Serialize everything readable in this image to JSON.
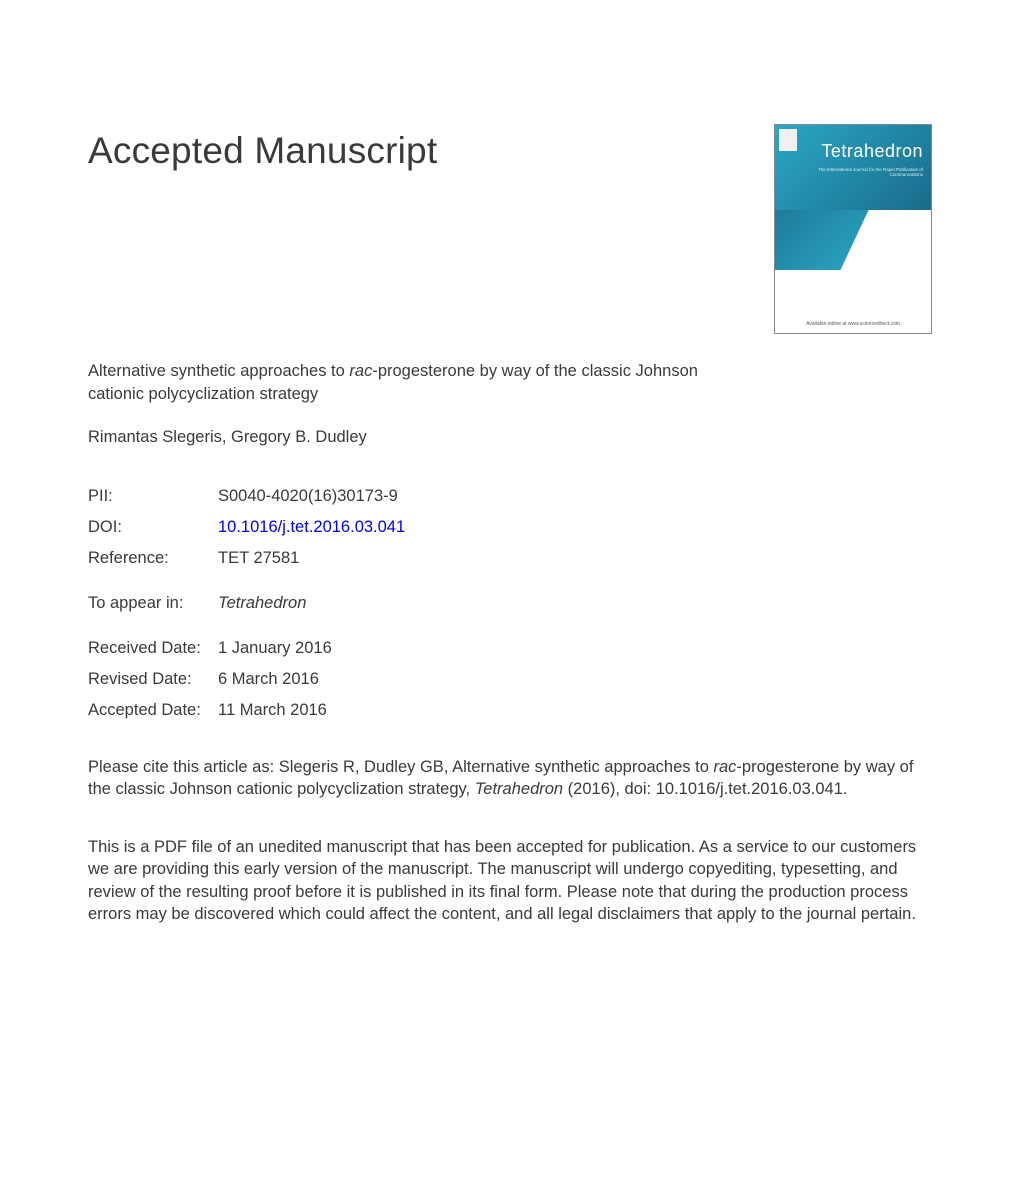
{
  "heading": "Accepted Manuscript",
  "journal_cover": {
    "title": "Tetrahedron",
    "subtitle": "The International Journal for the Rapid Publication of Communications",
    "footer": "Available online at www.sciencedirect.com"
  },
  "article": {
    "title_pre": "Alternative synthetic approaches to ",
    "title_ital": "rac",
    "title_post": "-progesterone by way of the classic Johnson cationic polycyclization strategy",
    "authors": "Rimantas Slegeris, Gregory B. Dudley"
  },
  "meta": {
    "pii_label": "PII:",
    "pii_value": "S0040-4020(16)30173-9",
    "doi_label": "DOI:",
    "doi_value": "10.1016/j.tet.2016.03.041",
    "ref_label": "Reference:",
    "ref_value": "TET 27581",
    "appear_label": "To appear in:",
    "appear_value": "Tetrahedron",
    "received_label": "Received Date:",
    "received_value": "1 January 2016",
    "revised_label": "Revised Date:",
    "revised_value": "6 March 2016",
    "accepted_label": "Accepted Date:",
    "accepted_value": "11 March 2016"
  },
  "citation": {
    "pre": "Please cite this article as: Slegeris R, Dudley GB, Alternative synthetic approaches to ",
    "ital1": "rac",
    "mid": "-progesterone by way of the classic Johnson cationic polycyclization strategy, ",
    "ital2": "Tetrahedron",
    "post": " (2016), doi: 10.1016/j.tet.2016.03.041."
  },
  "disclaimer": "This is a PDF file of an unedited manuscript that has been accepted for publication. As a service to our customers we are providing this early version of the manuscript. The manuscript will undergo copyediting, typesetting, and review of the resulting proof before it is published in its final form. Please note that during the production process errors may be discovered which could affect the content, and all legal disclaimers that apply to the journal pertain.",
  "colors": {
    "text": "#3a3a3a",
    "link": "#0000ee",
    "cover_gradient_start": "#2aa8c4",
    "cover_gradient_end": "#0e4a66",
    "background": "#ffffff"
  },
  "typography": {
    "heading_fontsize_pt": 28,
    "body_fontsize_pt": 12.5,
    "font_family": "Arial"
  }
}
